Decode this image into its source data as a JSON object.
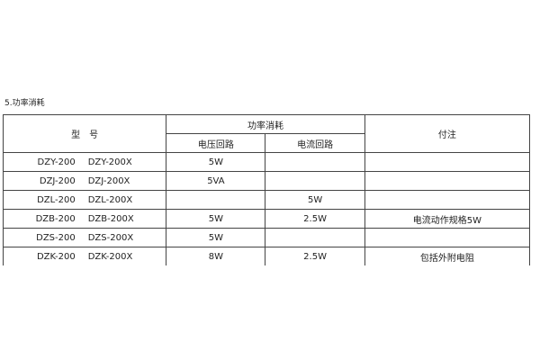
{
  "title": "5.功率消耗",
  "table": {
    "headers": {
      "model": "型　号",
      "power": "功率消耗",
      "voltage_circuit": "电压回路",
      "current_circuit": "电流回路",
      "note": "付注"
    },
    "rows": [
      {
        "model_a": "DZY-200",
        "model_b": "DZY-200X",
        "voltage": "5W",
        "current": "",
        "note": ""
      },
      {
        "model_a": "DZJ-200",
        "model_b": "DZJ-200X",
        "voltage": "5VA",
        "current": "",
        "note": ""
      },
      {
        "model_a": "DZL-200",
        "model_b": "DZL-200X",
        "voltage": "",
        "current": "5W",
        "note": ""
      },
      {
        "model_a": "DZB-200",
        "model_b": "DZB-200X",
        "voltage": "5W",
        "current": "2.5W",
        "note": "电流动作规格5W"
      },
      {
        "model_a": "DZS-200",
        "model_b": "DZS-200X",
        "voltage": "5W",
        "current": "",
        "note": ""
      },
      {
        "model_a": "DZK-200",
        "model_b": "DZK-200X",
        "voltage": "8W",
        "current": "2.5W",
        "note": "包括外附电阻"
      }
    ]
  }
}
